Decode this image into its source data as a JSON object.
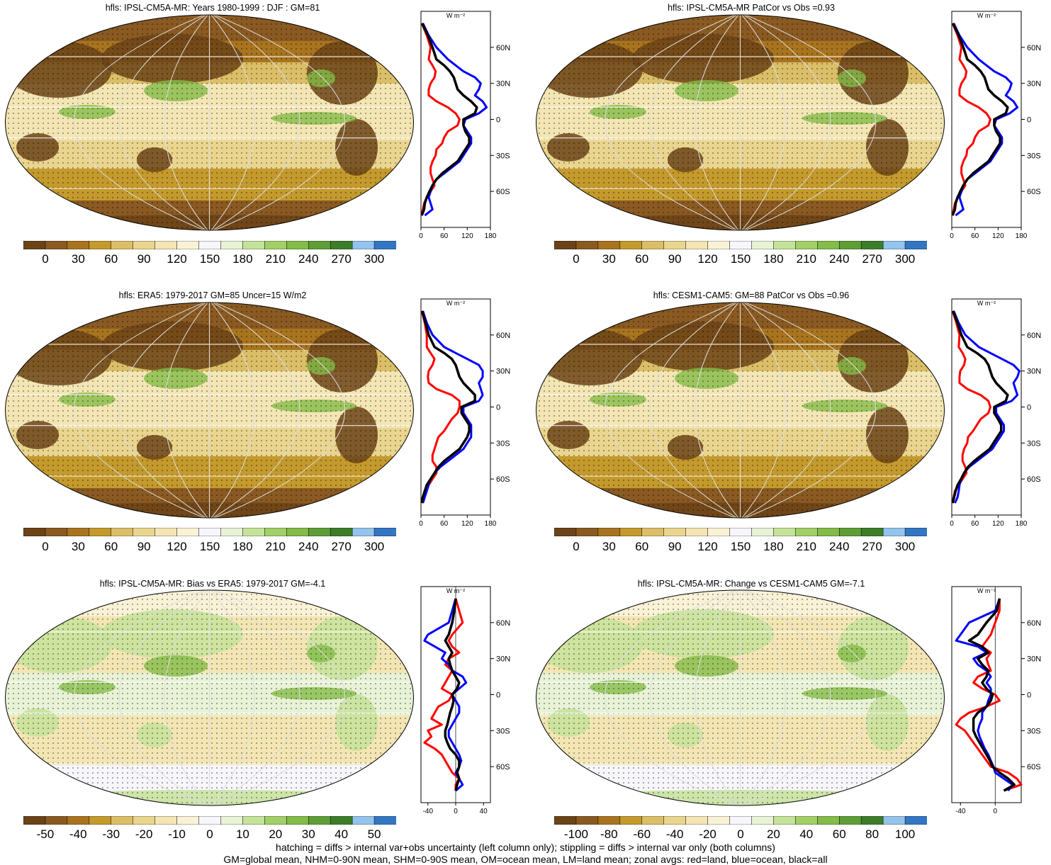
{
  "colors": {
    "abs_scale": [
      "#6b4318",
      "#8a5a22",
      "#a8741f",
      "#c49a2d",
      "#dbbf68",
      "#ead58f",
      "#f3e6b4",
      "#f9f2d6",
      "#f6f6fb",
      "#e8f2d6",
      "#c5e29a",
      "#a3cf68",
      "#84bb49",
      "#5f9e37",
      "#3d7d2a",
      "#94c4ec",
      "#3376c2"
    ],
    "bias_scale": [
      "#6b4318",
      "#8a5a22",
      "#a8741f",
      "#c49a2d",
      "#dbbf68",
      "#ead58f",
      "#f3e6b4",
      "#f9f2d6",
      "#f6f6fb",
      "#e8f2d6",
      "#c5e29a",
      "#a3cf68",
      "#84bb49",
      "#5f9e37",
      "#3d7d2a",
      "#94c4ec",
      "#3376c2"
    ],
    "land_line": "#ff0000",
    "ocean_line": "#0000ff",
    "all_line": "#000000"
  },
  "panels": [
    {
      "id": "p1",
      "title": "hfls: IPSL-CM5A-MR: Years 1980-1999 : DJF : GM=81",
      "scale": "abs",
      "colorbar_labels": [
        "0",
        "30",
        "60",
        "90",
        "120",
        "150",
        "180",
        "210",
        "240",
        "270",
        "300"
      ],
      "zonal_xticks": [
        "0",
        "60",
        "120",
        "180"
      ],
      "zonal_unit": "W m⁻²",
      "zonal_yticks": [
        "60N",
        "30N",
        "0",
        "30S",
        "60S"
      ]
    },
    {
      "id": "p2",
      "title": "hfls: IPSL-CM5A-MR PatCor vs Obs =0.93",
      "scale": "abs",
      "colorbar_labels": [
        "0",
        "30",
        "60",
        "90",
        "120",
        "150",
        "180",
        "210",
        "240",
        "270",
        "300"
      ],
      "zonal_xticks": [
        "0",
        "60",
        "120",
        "180"
      ],
      "zonal_unit": "W m⁻²",
      "zonal_yticks": [
        "60N",
        "30N",
        "0",
        "30S",
        "60S"
      ]
    },
    {
      "id": "p3",
      "title": "hfls: ERA5: 1979-2017 GM=85 Uncer=15 W/m2",
      "scale": "abs",
      "colorbar_labels": [
        "0",
        "30",
        "60",
        "90",
        "120",
        "150",
        "180",
        "210",
        "240",
        "270",
        "300"
      ],
      "zonal_xticks": [
        "0",
        "60",
        "120",
        "180"
      ],
      "zonal_unit": "W m⁻²",
      "zonal_yticks": [
        "60N",
        "30N",
        "0",
        "30S",
        "60S"
      ]
    },
    {
      "id": "p4",
      "title": "hfls: CESM1-CAM5: GM=88 PatCor vs Obs =0.96",
      "scale": "abs",
      "colorbar_labels": [
        "0",
        "30",
        "60",
        "90",
        "120",
        "150",
        "180",
        "210",
        "240",
        "270",
        "300"
      ],
      "zonal_xticks": [
        "0",
        "60",
        "120",
        "180"
      ],
      "zonal_unit": "W m⁻²",
      "zonal_yticks": [
        "60N",
        "30N",
        "0",
        "30S",
        "60S"
      ]
    },
    {
      "id": "p5",
      "title": "hfls: IPSL-CM5A-MR: Bias vs ERA5: 1979-2017 GM=-4.1",
      "scale": "bias",
      "colorbar_labels": [
        "-50",
        "-40",
        "-30",
        "-20",
        "-10",
        "0",
        "10",
        "20",
        "30",
        "40",
        "50"
      ],
      "zonal_xticks": [
        "-40",
        "0",
        "40"
      ],
      "zonal_unit": "W m⁻²",
      "zonal_yticks": [
        "60N",
        "30N",
        "0",
        "30S",
        "60S"
      ]
    },
    {
      "id": "p6",
      "title": "hfls: IPSL-CM5A-MR: Change vs CESM1-CAM5 GM=-7.1",
      "scale": "bias",
      "colorbar_labels": [
        "-100",
        "-80",
        "-60",
        "-40",
        "-20",
        "0",
        "20",
        "40",
        "60",
        "80",
        "100"
      ],
      "zonal_xticks": [
        "-40",
        "0"
      ],
      "zonal_unit": "W m⁻²",
      "zonal_yticks": [
        "60N",
        "30N",
        "0",
        "30S",
        "60S"
      ]
    }
  ],
  "footer": {
    "line1": "hatching = diffs > internal var+obs uncertainty (left column only); stippling = diffs > internal var only (both columns)",
    "line2": "GM=global mean, NHM=0-90N mean, SHM=0-90S mean, OM=ocean mean, LM=land mean; zonal avgs: red=land, blue=ocean, black=all"
  },
  "chart_data": [
    {
      "type": "line",
      "panel": "p1",
      "ylabel": "",
      "xlim": [
        0,
        180
      ],
      "ylim": [
        -90,
        90
      ],
      "series": [
        {
          "lat": [
            80,
            70,
            60,
            50,
            45,
            40,
            35,
            30,
            25,
            20,
            15,
            10,
            5,
            0,
            -5,
            -10,
            -15,
            -20,
            -25,
            -30,
            -35,
            -40,
            -45,
            -50,
            -55,
            -60,
            -65,
            -70,
            -75,
            -80
          ],
          "land": [
            2,
            15,
            25,
            20,
            30,
            38,
            35,
            25,
            20,
            20,
            40,
            70,
            90,
            100,
            95,
            70,
            60,
            55,
            40,
            38,
            30,
            25,
            25,
            30,
            35,
            25,
            15,
            8,
            5,
            2
          ],
          "ocean": [
            5,
            20,
            40,
            70,
            90,
            110,
            140,
            155,
            150,
            140,
            160,
            170,
            150,
            115,
            110,
            120,
            130,
            130,
            120,
            110,
            100,
            80,
            60,
            40,
            30,
            25,
            20,
            25,
            30,
            10
          ],
          "all": [
            3,
            18,
            30,
            40,
            60,
            75,
            85,
            90,
            95,
            110,
            130,
            145,
            140,
            110,
            110,
            115,
            125,
            125,
            115,
            105,
            95,
            75,
            55,
            40,
            30,
            22,
            15,
            10,
            8,
            2
          ]
        }
      ]
    },
    {
      "type": "line",
      "panel": "p2",
      "xlim": [
        0,
        180
      ],
      "ylim": [
        -90,
        90
      ],
      "series": [
        {
          "lat": [
            80,
            70,
            60,
            50,
            45,
            40,
            35,
            30,
            25,
            20,
            15,
            10,
            5,
            0,
            -5,
            -10,
            -15,
            -20,
            -25,
            -30,
            -35,
            -40,
            -45,
            -50,
            -55,
            -60,
            -65,
            -70,
            -75,
            -80
          ],
          "land": [
            2,
            15,
            25,
            20,
            30,
            38,
            35,
            25,
            20,
            20,
            40,
            70,
            90,
            100,
            95,
            70,
            60,
            55,
            40,
            38,
            30,
            25,
            25,
            30,
            35,
            25,
            15,
            8,
            5,
            2
          ],
          "ocean": [
            5,
            20,
            40,
            70,
            90,
            110,
            140,
            155,
            150,
            140,
            160,
            170,
            150,
            115,
            110,
            120,
            130,
            130,
            120,
            110,
            100,
            80,
            60,
            40,
            30,
            25,
            20,
            25,
            30,
            10
          ],
          "all": [
            3,
            18,
            30,
            40,
            60,
            75,
            85,
            90,
            95,
            110,
            130,
            145,
            140,
            110,
            110,
            115,
            125,
            125,
            115,
            105,
            95,
            75,
            55,
            40,
            30,
            22,
            15,
            10,
            8,
            2
          ]
        }
      ]
    },
    {
      "type": "line",
      "panel": "p3",
      "xlim": [
        0,
        180
      ],
      "ylim": [
        -90,
        90
      ],
      "series": [
        {
          "lat": [
            80,
            70,
            60,
            50,
            45,
            40,
            35,
            30,
            25,
            20,
            15,
            10,
            5,
            0,
            -5,
            -10,
            -15,
            -20,
            -25,
            -30,
            -35,
            -40,
            -45,
            -50,
            -55,
            -60,
            -65,
            -70,
            -75,
            -80
          ],
          "land": [
            2,
            10,
            15,
            15,
            25,
            35,
            30,
            20,
            18,
            20,
            40,
            80,
            100,
            100,
            95,
            80,
            70,
            60,
            45,
            40,
            35,
            30,
            30,
            40,
            40,
            30,
            20,
            10,
            5,
            2
          ],
          "ocean": [
            5,
            15,
            30,
            60,
            90,
            120,
            150,
            160,
            160,
            150,
            155,
            160,
            150,
            110,
            110,
            120,
            130,
            130,
            130,
            120,
            110,
            90,
            70,
            50,
            35,
            25,
            20,
            15,
            10,
            5
          ],
          "all": [
            3,
            12,
            20,
            35,
            60,
            80,
            90,
            95,
            100,
            110,
            125,
            140,
            140,
            105,
            105,
            115,
            125,
            125,
            120,
            110,
            100,
            80,
            60,
            45,
            35,
            25,
            15,
            10,
            5,
            2
          ]
        }
      ]
    },
    {
      "type": "line",
      "panel": "p4",
      "xlim": [
        0,
        180
      ],
      "ylim": [
        -90,
        90
      ],
      "series": [
        {
          "lat": [
            80,
            70,
            60,
            50,
            45,
            40,
            35,
            30,
            25,
            20,
            15,
            10,
            5,
            0,
            -5,
            -10,
            -15,
            -20,
            -25,
            -30,
            -35,
            -40,
            -45,
            -50,
            -55,
            -60,
            -65,
            -70,
            -75,
            -80
          ],
          "land": [
            2,
            12,
            20,
            18,
            28,
            35,
            32,
            22,
            20,
            20,
            40,
            75,
            95,
            100,
            95,
            75,
            65,
            55,
            42,
            40,
            32,
            28,
            28,
            35,
            38,
            28,
            18,
            8,
            5,
            2
          ],
          "ocean": [
            5,
            18,
            35,
            70,
            100,
            130,
            160,
            175,
            170,
            160,
            165,
            170,
            155,
            115,
            115,
            125,
            135,
            135,
            125,
            115,
            105,
            85,
            65,
            45,
            32,
            25,
            20,
            18,
            15,
            8
          ],
          "all": [
            3,
            15,
            25,
            40,
            65,
            85,
            95,
            100,
            105,
            115,
            130,
            145,
            140,
            110,
            110,
            120,
            128,
            128,
            118,
            108,
            98,
            78,
            58,
            42,
            32,
            24,
            15,
            10,
            6,
            2
          ]
        }
      ]
    },
    {
      "type": "line",
      "panel": "p5",
      "xlim": [
        -50,
        50
      ],
      "ylim": [
        -90,
        90
      ],
      "series": [
        {
          "lat": [
            80,
            70,
            60,
            50,
            45,
            40,
            35,
            30,
            25,
            20,
            15,
            10,
            5,
            0,
            -5,
            -10,
            -15,
            -20,
            -25,
            -30,
            -35,
            -40,
            -45,
            -50,
            -55,
            -60,
            -65,
            -70,
            -75,
            -80
          ],
          "land": [
            0,
            5,
            10,
            -5,
            -10,
            -5,
            5,
            -10,
            -15,
            -5,
            -10,
            -15,
            -20,
            -5,
            -10,
            -25,
            -30,
            -35,
            -20,
            -40,
            -35,
            -45,
            -30,
            -20,
            -15,
            -10,
            -5,
            5,
            0,
            0
          ],
          "ocean": [
            0,
            -5,
            -10,
            -40,
            -45,
            -30,
            -15,
            -20,
            -10,
            -5,
            10,
            15,
            5,
            -5,
            0,
            5,
            5,
            0,
            -5,
            -10,
            -10,
            -5,
            0,
            5,
            8,
            5,
            0,
            5,
            10,
            0
          ],
          "all": [
            0,
            -2,
            -5,
            -10,
            -15,
            -10,
            -5,
            -10,
            -8,
            -5,
            0,
            5,
            2,
            -5,
            -3,
            -5,
            -8,
            -10,
            -12,
            -15,
            -15,
            -12,
            -8,
            0,
            5,
            5,
            2,
            5,
            2,
            0
          ]
        }
      ]
    },
    {
      "type": "line",
      "panel": "p6",
      "xlim": [
        -50,
        30
      ],
      "ylim": [
        -90,
        90
      ],
      "series": [
        {
          "lat": [
            80,
            70,
            60,
            50,
            45,
            40,
            35,
            30,
            25,
            20,
            15,
            10,
            5,
            0,
            -5,
            -10,
            -15,
            -20,
            -25,
            -30,
            -35,
            -40,
            -45,
            -50,
            -55,
            -60,
            -65,
            -70,
            -75,
            -80
          ],
          "land": [
            5,
            5,
            0,
            -5,
            -10,
            -15,
            -5,
            -10,
            -8,
            -5,
            -20,
            -25,
            -15,
            0,
            5,
            -10,
            -30,
            -40,
            -45,
            -35,
            -30,
            -25,
            -20,
            -15,
            -10,
            -5,
            15,
            25,
            30,
            10
          ],
          "ocean": [
            5,
            0,
            -30,
            -40,
            -45,
            -20,
            -10,
            -25,
            -20,
            -10,
            -5,
            -10,
            -5,
            -5,
            -8,
            -10,
            -15,
            -15,
            -18,
            -20,
            -18,
            -15,
            -12,
            -8,
            -5,
            -2,
            0,
            10,
            20,
            15
          ],
          "all": [
            5,
            2,
            -10,
            -20,
            -30,
            -15,
            -8,
            -20,
            -15,
            -8,
            -10,
            -15,
            -10,
            -3,
            -5,
            -10,
            -20,
            -25,
            -25,
            -25,
            -22,
            -18,
            -14,
            -10,
            -6,
            -3,
            5,
            15,
            22,
            10
          ]
        }
      ]
    }
  ]
}
